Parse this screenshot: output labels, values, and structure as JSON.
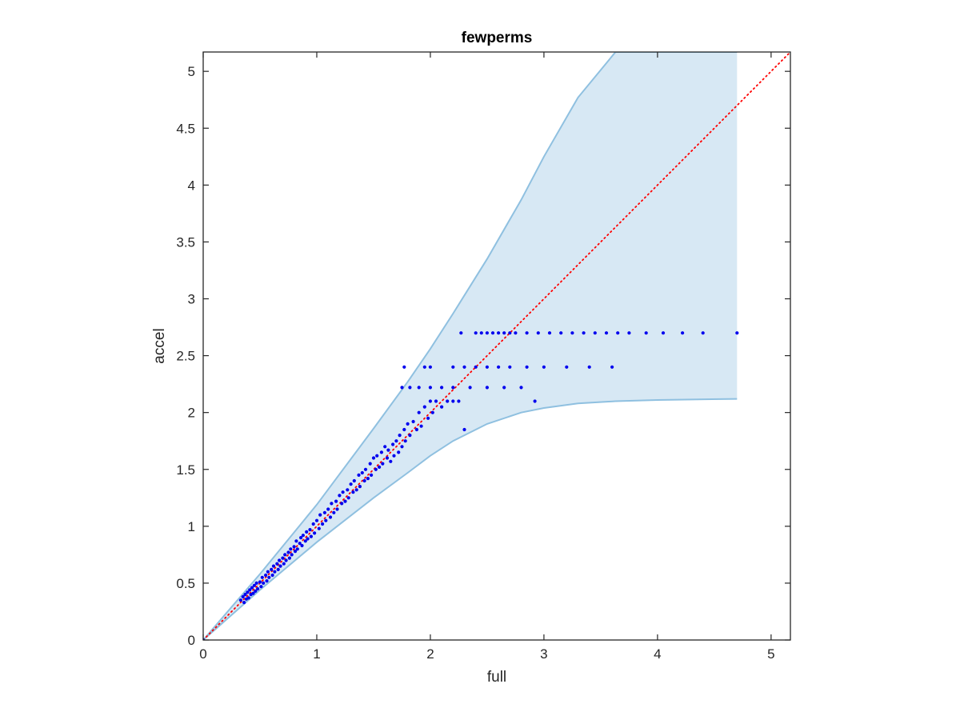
{
  "chart_data": {
    "type": "scatter",
    "title": "fewperms",
    "xlabel": "full",
    "ylabel": "accel",
    "xlim": [
      0,
      5.17
    ],
    "ylim": [
      0,
      5.17
    ],
    "xticks": [
      0,
      1,
      2,
      3,
      4,
      5
    ],
    "yticks": [
      0,
      0.5,
      1,
      1.5,
      2,
      2.5,
      3,
      3.5,
      4,
      4.5,
      5
    ],
    "xtick_labels": [
      "0",
      "1",
      "2",
      "3",
      "4",
      "5"
    ],
    "ytick_labels": [
      "0",
      "0.5",
      "1",
      "1.5",
      "2",
      "2.5",
      "3",
      "3.5",
      "4",
      "4.5",
      "5"
    ],
    "grid": false,
    "box": true,
    "colors": {
      "points": "#0000ee",
      "band_fill": "#d7e8f4",
      "band_edge": "#8fc0e0",
      "reference_line": "#ff0000",
      "axes": "#262626"
    },
    "band": {
      "x": [
        0,
        0.5,
        1,
        1.5,
        1.8,
        2,
        2.2,
        2.5,
        2.8,
        3,
        3.3,
        3.63,
        4,
        4.7
      ],
      "upper": [
        0,
        0.58,
        1.19,
        1.86,
        2.27,
        2.56,
        2.87,
        3.35,
        3.87,
        4.25,
        4.77,
        5.17,
        5.17,
        5.17
      ],
      "lower": [
        0,
        0.44,
        0.86,
        1.25,
        1.47,
        1.62,
        1.75,
        1.9,
        2.0,
        2.04,
        2.08,
        2.1,
        2.11,
        2.12
      ]
    },
    "reference_line": {
      "style": "dotted",
      "from": [
        0,
        0
      ],
      "to": [
        5.17,
        5.17
      ]
    },
    "series": [
      {
        "points": [
          [
            0,
            0
          ],
          [
            0.33,
            0.35
          ],
          [
            0.35,
            0.38
          ],
          [
            0.36,
            0.33
          ],
          [
            0.37,
            0.4
          ],
          [
            0.38,
            0.36
          ],
          [
            0.39,
            0.42
          ],
          [
            0.4,
            0.37
          ],
          [
            0.41,
            0.44
          ],
          [
            0.42,
            0.4
          ],
          [
            0.43,
            0.46
          ],
          [
            0.44,
            0.41
          ],
          [
            0.45,
            0.48
          ],
          [
            0.46,
            0.43
          ],
          [
            0.47,
            0.5
          ],
          [
            0.48,
            0.45
          ],
          [
            0.5,
            0.51
          ],
          [
            0.51,
            0.47
          ],
          [
            0.52,
            0.55
          ],
          [
            0.53,
            0.5
          ],
          [
            0.55,
            0.57
          ],
          [
            0.56,
            0.52
          ],
          [
            0.57,
            0.6
          ],
          [
            0.58,
            0.55
          ],
          [
            0.6,
            0.62
          ],
          [
            0.61,
            0.57
          ],
          [
            0.62,
            0.65
          ],
          [
            0.63,
            0.6
          ],
          [
            0.65,
            0.67
          ],
          [
            0.66,
            0.62
          ],
          [
            0.67,
            0.7
          ],
          [
            0.68,
            0.65
          ],
          [
            0.7,
            0.72
          ],
          [
            0.71,
            0.67
          ],
          [
            0.72,
            0.75
          ],
          [
            0.73,
            0.7
          ],
          [
            0.75,
            0.77
          ],
          [
            0.76,
            0.72
          ],
          [
            0.77,
            0.8
          ],
          [
            0.78,
            0.75
          ],
          [
            0.8,
            0.82
          ],
          [
            0.81,
            0.78
          ],
          [
            0.82,
            0.87
          ],
          [
            0.83,
            0.8
          ],
          [
            0.85,
            0.85
          ],
          [
            0.86,
            0.9
          ],
          [
            0.87,
            0.83
          ],
          [
            0.88,
            0.92
          ],
          [
            0.9,
            0.87
          ],
          [
            0.91,
            0.95
          ],
          [
            0.92,
            0.89
          ],
          [
            0.94,
            0.97
          ],
          [
            0.95,
            0.91
          ],
          [
            0.97,
            1.02
          ],
          [
            0.98,
            0.94
          ],
          [
            1.0,
            1.05
          ],
          [
            1.02,
            0.98
          ],
          [
            1.03,
            1.1
          ],
          [
            1.05,
            1.02
          ],
          [
            1.07,
            1.12
          ],
          [
            1.08,
            1.05
          ],
          [
            1.1,
            1.15
          ],
          [
            1.12,
            1.08
          ],
          [
            1.13,
            1.2
          ],
          [
            1.15,
            1.12
          ],
          [
            1.17,
            1.22
          ],
          [
            1.18,
            1.15
          ],
          [
            1.2,
            1.27
          ],
          [
            1.22,
            1.2
          ],
          [
            1.23,
            1.3
          ],
          [
            1.25,
            1.22
          ],
          [
            1.27,
            1.32
          ],
          [
            1.28,
            1.25
          ],
          [
            1.3,
            1.37
          ],
          [
            1.32,
            1.3
          ],
          [
            1.33,
            1.4
          ],
          [
            1.35,
            1.32
          ],
          [
            1.37,
            1.45
          ],
          [
            1.38,
            1.35
          ],
          [
            1.4,
            1.47
          ],
          [
            1.42,
            1.4
          ],
          [
            1.43,
            1.5
          ],
          [
            1.45,
            1.42
          ],
          [
            1.47,
            1.55
          ],
          [
            1.48,
            1.45
          ],
          [
            1.5,
            1.6
          ],
          [
            1.52,
            1.5
          ],
          [
            1.53,
            1.62
          ],
          [
            1.55,
            1.52
          ],
          [
            1.57,
            1.65
          ],
          [
            1.58,
            1.55
          ],
          [
            1.6,
            1.7
          ],
          [
            1.62,
            1.6
          ],
          [
            1.63,
            1.67
          ],
          [
            1.65,
            1.57
          ],
          [
            1.67,
            1.72
          ],
          [
            1.68,
            1.62
          ],
          [
            1.7,
            1.75
          ],
          [
            1.72,
            1.65
          ],
          [
            1.73,
            1.8
          ],
          [
            1.75,
            1.7
          ],
          [
            1.77,
            1.85
          ],
          [
            1.78,
            1.75
          ],
          [
            1.8,
            1.9
          ],
          [
            1.82,
            1.8
          ],
          [
            1.85,
            1.92
          ],
          [
            1.88,
            1.85
          ],
          [
            1.9,
            2.0
          ],
          [
            1.92,
            1.88
          ],
          [
            1.95,
            2.05
          ],
          [
            1.98,
            1.95
          ],
          [
            2.0,
            2.1
          ],
          [
            2.02,
            2.0
          ],
          [
            2.05,
            2.1
          ],
          [
            2.1,
            2.05
          ],
          [
            2.15,
            2.1
          ],
          [
            2.2,
            2.1
          ],
          [
            2.25,
            2.1
          ],
          [
            2.3,
            1.85
          ],
          [
            1.77,
            2.4
          ],
          [
            2.27,
            2.7
          ],
          [
            2.4,
            2.7
          ],
          [
            2.45,
            2.7
          ],
          [
            2.5,
            2.7
          ],
          [
            2.55,
            2.7
          ],
          [
            2.6,
            2.7
          ],
          [
            2.65,
            2.7
          ],
          [
            2.7,
            2.7
          ],
          [
            2.75,
            2.7
          ],
          [
            2.85,
            2.7
          ],
          [
            2.95,
            2.7
          ],
          [
            3.05,
            2.7
          ],
          [
            3.15,
            2.7
          ],
          [
            3.25,
            2.7
          ],
          [
            3.35,
            2.7
          ],
          [
            3.45,
            2.7
          ],
          [
            3.55,
            2.7
          ],
          [
            3.65,
            2.7
          ],
          [
            3.75,
            2.7
          ],
          [
            3.9,
            2.7
          ],
          [
            4.05,
            2.7
          ],
          [
            4.22,
            2.7
          ],
          [
            4.4,
            2.7
          ],
          [
            4.7,
            2.7
          ],
          [
            1.95,
            2.4
          ],
          [
            2.0,
            2.4
          ],
          [
            2.2,
            2.4
          ],
          [
            2.3,
            2.4
          ],
          [
            2.4,
            2.4
          ],
          [
            2.5,
            2.4
          ],
          [
            2.6,
            2.4
          ],
          [
            2.7,
            2.4
          ],
          [
            2.85,
            2.4
          ],
          [
            3.0,
            2.4
          ],
          [
            3.2,
            2.4
          ],
          [
            3.4,
            2.4
          ],
          [
            3.6,
            2.4
          ],
          [
            1.75,
            2.22
          ],
          [
            1.82,
            2.22
          ],
          [
            1.9,
            2.22
          ],
          [
            2.0,
            2.22
          ],
          [
            2.1,
            2.22
          ],
          [
            2.2,
            2.22
          ],
          [
            2.35,
            2.22
          ],
          [
            2.5,
            2.22
          ],
          [
            2.65,
            2.22
          ],
          [
            2.8,
            2.22
          ],
          [
            2.92,
            2.1
          ]
        ]
      }
    ]
  }
}
